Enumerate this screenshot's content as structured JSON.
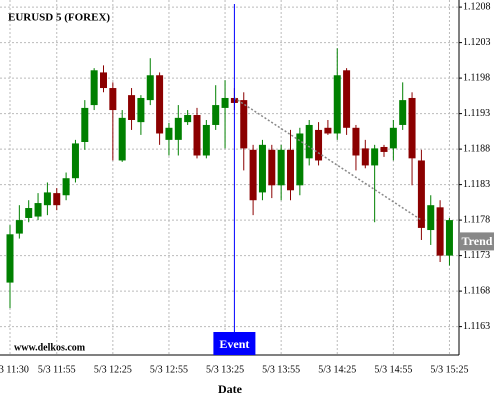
{
  "chart_data": {
    "type": "candlestick",
    "title": "EURUSD 5 (FOREX)",
    "x_label": "Date",
    "watermark": "www.delkos.com",
    "categories": [
      "5/3 11:30",
      null,
      null,
      null,
      null,
      "5/3 11:55",
      null,
      null,
      null,
      null,
      null,
      "5/3 12:25",
      null,
      null,
      null,
      null,
      null,
      "5/3 12:55",
      null,
      null,
      null,
      null,
      null,
      "5/3 13:25",
      null,
      null,
      null,
      null,
      null,
      "5/3 13:55",
      null,
      null,
      null,
      null,
      null,
      "5/3 14:25",
      null,
      null,
      null,
      null,
      null,
      "5/3 14:55",
      null,
      null,
      null,
      null,
      null,
      "5/3 15:25"
    ],
    "open": [
      1.11692,
      1.11761,
      1.11783,
      1.11785,
      1.11801,
      1.11818,
      1.11815,
      1.11839,
      1.1189,
      1.11942,
      1.11988,
      1.11966,
      1.11864,
      1.11956,
      1.11918,
      1.11949,
      1.11984,
      1.11893,
      1.11893,
      1.11918,
      1.11928,
      1.11871,
      1.11914,
      1.11938,
      1.11952,
      1.11949,
      1.11879,
      1.11819,
      1.11879,
      1.11829,
      1.11879,
      1.11829,
      1.11867,
      1.11907,
      1.1191,
      1.11902,
      1.11991,
      1.1191,
      1.11881,
      1.11857,
      1.11883,
      1.11881,
      1.11914,
      1.11952,
      1.11864,
      1.11766,
      1.11798,
      1.1173
    ],
    "close": [
      1.1176,
      1.1178,
      1.11797,
      1.11804,
      1.11819,
      1.11801,
      1.11839,
      1.11888,
      1.11938,
      1.11991,
      1.11966,
      1.11935,
      1.11924,
      1.11921,
      1.11952,
      1.11984,
      1.11902,
      1.1191,
      1.11924,
      1.11928,
      1.11871,
      1.11914,
      1.11942,
      1.11952,
      1.11945,
      1.11881,
      1.11808,
      1.11886,
      1.11829,
      1.11879,
      1.11822,
      1.11902,
      1.11914,
      1.11864,
      1.11902,
      1.11984,
      1.1191,
      1.11871,
      1.11857,
      1.11881,
      1.11876,
      1.1191,
      1.11949,
      1.11867,
      1.11769,
      1.11801,
      1.1173,
      1.1178
    ],
    "high": [
      1.11773,
      1.11801,
      1.11808,
      1.11818,
      1.11833,
      1.11825,
      1.11847,
      1.11893,
      1.11949,
      1.11994,
      1.11998,
      1.11974,
      1.11935,
      1.11966,
      1.11956,
      1.12008,
      1.11988,
      1.11917,
      1.11942,
      1.11935,
      1.11938,
      1.11921,
      1.1197,
      1.11977,
      1.11966,
      1.1196,
      1.11886,
      1.11893,
      1.11886,
      1.11886,
      1.11907,
      1.1191,
      1.11921,
      1.11918,
      1.11921,
      1.12022,
      1.11994,
      1.11914,
      1.11893,
      1.11886,
      1.11886,
      1.11921,
      1.11974,
      1.1196,
      1.11879,
      1.11815,
      1.11808,
      1.11783
    ],
    "low": [
      1.11656,
      1.11754,
      1.11777,
      1.1178,
      1.11787,
      1.11794,
      1.11808,
      1.11833,
      1.11879,
      1.11935,
      1.1196,
      1.11864,
      1.11862,
      1.11907,
      1.119,
      1.11942,
      1.11886,
      1.11871,
      1.11871,
      1.11914,
      1.11867,
      1.11867,
      1.11907,
      1.11881,
      1.11935,
      1.1185,
      1.11787,
      1.11808,
      1.11811,
      1.11808,
      1.11808,
      1.11815,
      1.11857,
      1.11857,
      1.119,
      1.11893,
      1.119,
      1.1185,
      1.11853,
      1.11777,
      1.11869,
      1.11864,
      1.11907,
      1.11829,
      1.11752,
      1.11745,
      1.11721,
      1.11716
    ],
    "up_color": "#008000",
    "down_color": "#8b0000",
    "ylim": [
      1.1159,
      1.1209
    ],
    "yticks": [
      1.1163,
      1.1168,
      1.1173,
      1.1178,
      1.1183,
      1.1188,
      1.1193,
      1.1198,
      1.1203,
      1.1208
    ],
    "grid": true,
    "event": {
      "label": "Event",
      "category_index": 24,
      "color": "#0000ff"
    },
    "trend": {
      "label": "Trend",
      "start": [
        24,
        1.11952
      ],
      "end": [
        44,
        1.1178
      ],
      "label_value": 1.1175,
      "color": "#888888"
    }
  }
}
